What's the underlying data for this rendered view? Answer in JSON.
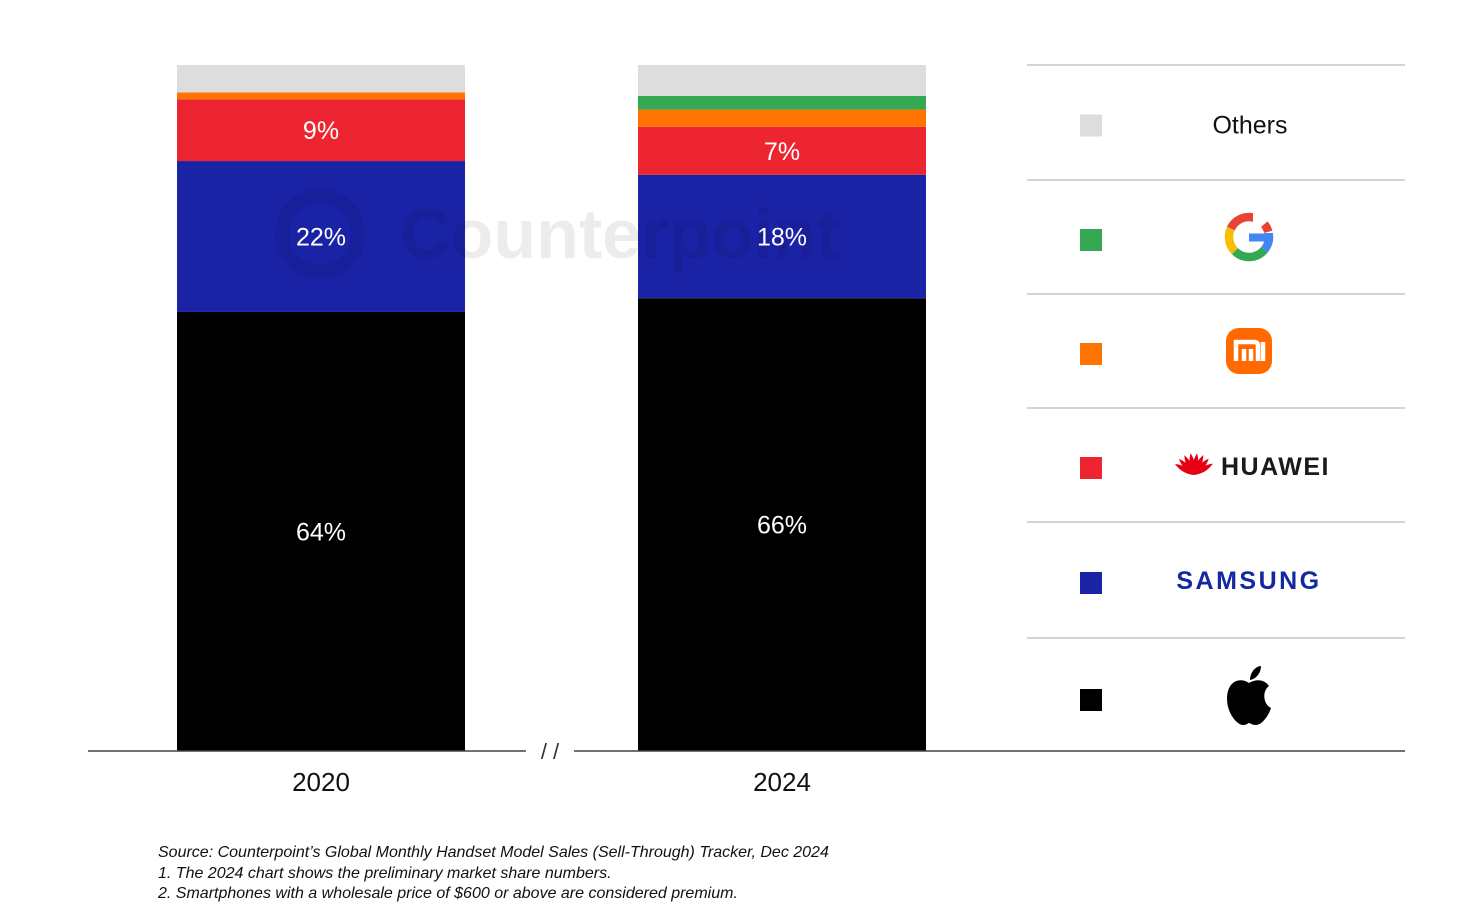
{
  "chart_data": {
    "type": "bar",
    "stacked": true,
    "normalized": true,
    "categories": [
      "2020",
      "2024"
    ],
    "axis_break_label": "/ /",
    "series": [
      {
        "brand": "Apple",
        "legend_label": "",
        "legend_icon": "apple-logo-icon",
        "color": "#000000",
        "values": [
          64,
          66
        ],
        "labels": [
          "64%",
          "66%"
        ]
      },
      {
        "brand": "Samsung",
        "legend_label": "SAMSUNG",
        "legend_icon": "samsung-logo-icon",
        "color": "#1a22a6",
        "values": [
          22,
          18
        ],
        "labels": [
          "22%",
          "18%"
        ]
      },
      {
        "brand": "Huawei",
        "legend_label": "HUAWEI",
        "legend_icon": "huawei-logo-icon",
        "color": "#ec2530",
        "values": [
          9,
          7
        ],
        "labels": [
          "9%",
          "7%"
        ]
      },
      {
        "brand": "Xiaomi",
        "legend_label": "mi",
        "legend_icon": "xiaomi-logo-icon",
        "color": "#ff7400",
        "values": [
          1,
          2.5
        ],
        "labels": [
          "",
          ""
        ]
      },
      {
        "brand": "Google",
        "legend_label": "G",
        "legend_icon": "google-logo-icon",
        "color": "#34a853",
        "values": [
          0,
          2
        ],
        "labels": [
          "",
          ""
        ]
      },
      {
        "brand": "Others",
        "legend_label": "Others",
        "legend_icon": "",
        "color": "#dddddd",
        "values": [
          4,
          4.5
        ],
        "labels": [
          "",
          ""
        ]
      }
    ],
    "legend_order": [
      "Others",
      "Google",
      "Xiaomi",
      "Huawei",
      "Samsung",
      "Apple"
    ],
    "legend_placement": "right",
    "grid": false,
    "watermark": "Counterpoint"
  },
  "footnotes": {
    "source": "Source: Counterpoint’s Global Monthly Handset Model Sales (Sell-Through) Tracker, Dec 2024",
    "note1": "1. The 2024 chart shows the preliminary market share numbers.",
    "note2": "2. Smartphones with a wholesale price of $600 or above are considered premium."
  }
}
